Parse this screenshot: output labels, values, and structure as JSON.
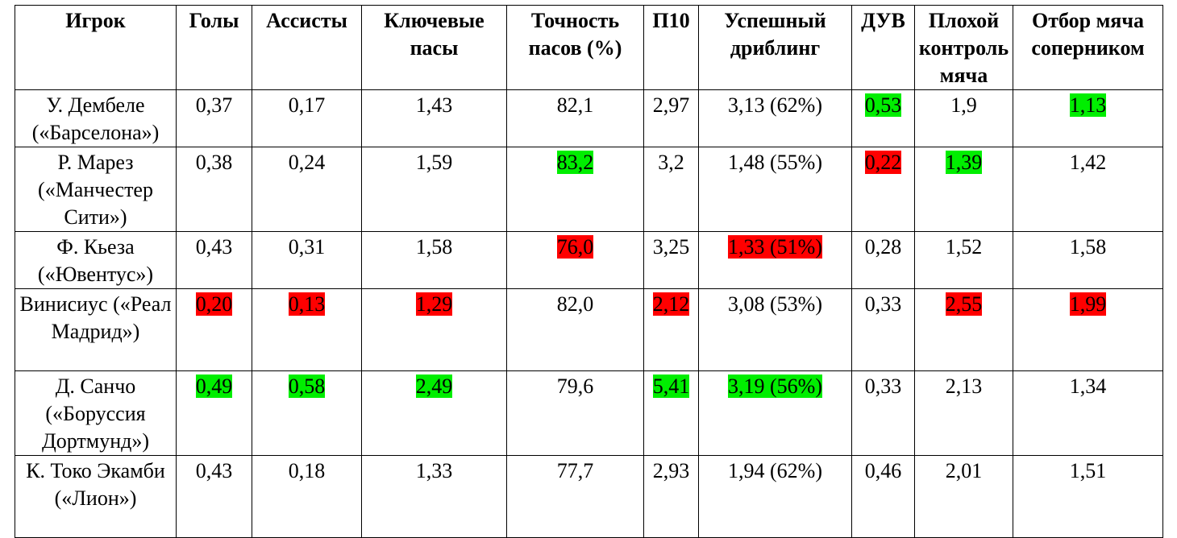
{
  "colors": {
    "best": "#00ee00",
    "worst": "#ff0000"
  },
  "headers": [
    "Игрок",
    "Голы",
    "Ассисты",
    "Ключевые пасы",
    "Точность пасов (%)",
    "П10",
    "Успешный дриблинг",
    "ДУВ",
    "Плохой контроль мяча",
    "Отбор мяча соперником"
  ],
  "rows": [
    {
      "cells": [
        {
          "text": "У. Дембеле («Барселона»)"
        },
        {
          "text": "0,37"
        },
        {
          "text": "0,17"
        },
        {
          "text": "1,43"
        },
        {
          "text": "82,1"
        },
        {
          "text": "2,97"
        },
        {
          "text": "3,13 (62%)"
        },
        {
          "text": "0,53",
          "hl": "green"
        },
        {
          "text": "1,9"
        },
        {
          "text": "1,13",
          "hl": "green"
        }
      ]
    },
    {
      "cells": [
        {
          "text": "Р. Марез («Манчестер Сити»)"
        },
        {
          "text": "0,38"
        },
        {
          "text": "0,24"
        },
        {
          "text": "1,59"
        },
        {
          "text": "83,2",
          "hl": "green"
        },
        {
          "text": "3,2"
        },
        {
          "text": "1,48 (55%)"
        },
        {
          "text": "0,22",
          "hl": "red"
        },
        {
          "text": "1,39",
          "hl": "green"
        },
        {
          "text": "1,42"
        }
      ]
    },
    {
      "cells": [
        {
          "text": "Ф. Кьеза («Ювентус»)"
        },
        {
          "text": "0,43"
        },
        {
          "text": "0,31"
        },
        {
          "text": "1,58"
        },
        {
          "text": "76,0",
          "hl": "red"
        },
        {
          "text": "3,25"
        },
        {
          "text": "1,33 (51%)",
          "hl": "red"
        },
        {
          "text": "0,28"
        },
        {
          "text": "1,52"
        },
        {
          "text": "1,58"
        }
      ]
    },
    {
      "cells": [
        {
          "text": "Винисиус («Реал Мадрид»)"
        },
        {
          "text": "0,20",
          "hl": "red"
        },
        {
          "text": "0,13",
          "hl": "red"
        },
        {
          "text": "1,29",
          "hl": "red"
        },
        {
          "text": "82,0"
        },
        {
          "text": "2,12",
          "hl": "red"
        },
        {
          "text": "3,08 (53%)"
        },
        {
          "text": "0,33"
        },
        {
          "text": "2,55",
          "hl": "red"
        },
        {
          "text": "1,99",
          "hl": "red"
        }
      ]
    },
    {
      "cells": [
        {
          "text": "Д. Санчо («Боруссия Дортмунд»)"
        },
        {
          "text": "0,49",
          "hl": "green"
        },
        {
          "text": "0,58",
          "hl": "green"
        },
        {
          "text": "2,49",
          "hl": "green"
        },
        {
          "text": "79,6"
        },
        {
          "text": "5,41",
          "hl": "green"
        },
        {
          "text": "3,19 (56%)",
          "hl": "green"
        },
        {
          "text": "0,33"
        },
        {
          "text": "2,13"
        },
        {
          "text": "1,34"
        }
      ]
    },
    {
      "cells": [
        {
          "text": "К. Токо Экамби («Лион»)"
        },
        {
          "text": "0,43"
        },
        {
          "text": "0,18"
        },
        {
          "text": "1,33"
        },
        {
          "text": "77,7"
        },
        {
          "text": "2,93"
        },
        {
          "text": "1,94 (62%)"
        },
        {
          "text": "0,46"
        },
        {
          "text": "2,01"
        },
        {
          "text": "1,51"
        }
      ]
    }
  ]
}
